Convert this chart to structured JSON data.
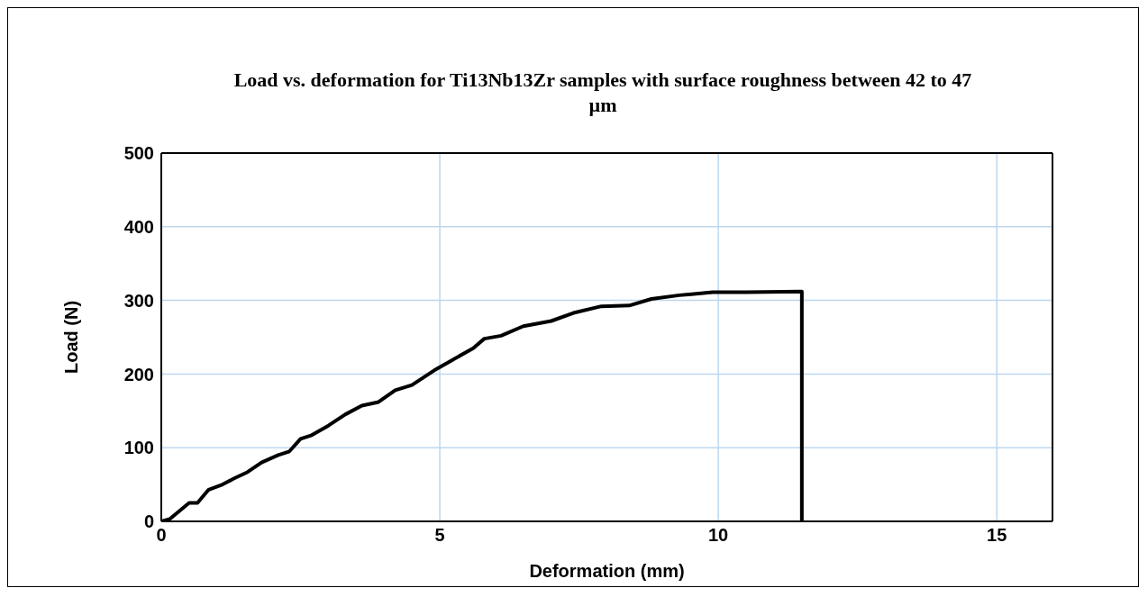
{
  "chart_data": {
    "type": "line",
    "title": "Load vs. deformation for Ti13Nb13Zr samples with surface roughness between 42 to 47 µm",
    "xlabel": "Deformation (mm)",
    "ylabel": "Load (N)",
    "x": [
      0,
      0.15,
      0.5,
      0.65,
      0.85,
      1.1,
      1.3,
      1.55,
      1.8,
      2.1,
      2.3,
      2.5,
      2.7,
      3.0,
      3.3,
      3.6,
      3.9,
      4.2,
      4.5,
      4.9,
      5.2,
      5.6,
      5.8,
      6.1,
      6.5,
      7.0,
      7.4,
      7.9,
      8.4,
      8.8,
      9.3,
      9.9,
      10.5,
      11.5,
      11.5
    ],
    "series": [
      {
        "color": "#000000",
        "values": [
          0,
          3,
          25,
          25,
          43,
          50,
          58,
          67,
          80,
          90,
          95,
          112,
          117,
          130,
          145,
          157,
          162,
          178,
          185,
          205,
          218,
          235,
          248,
          252,
          265,
          272,
          283,
          292,
          293,
          302,
          307,
          311,
          311,
          312,
          0
        ]
      }
    ],
    "xlim": [
      0,
      16
    ],
    "xticks": [
      0,
      5,
      10,
      15
    ],
    "ylim": [
      0,
      500
    ],
    "yticks": [
      0,
      100,
      200,
      300,
      400,
      500
    ],
    "grid": true,
    "marker": "none",
    "line_style": "solid",
    "legend": false
  }
}
